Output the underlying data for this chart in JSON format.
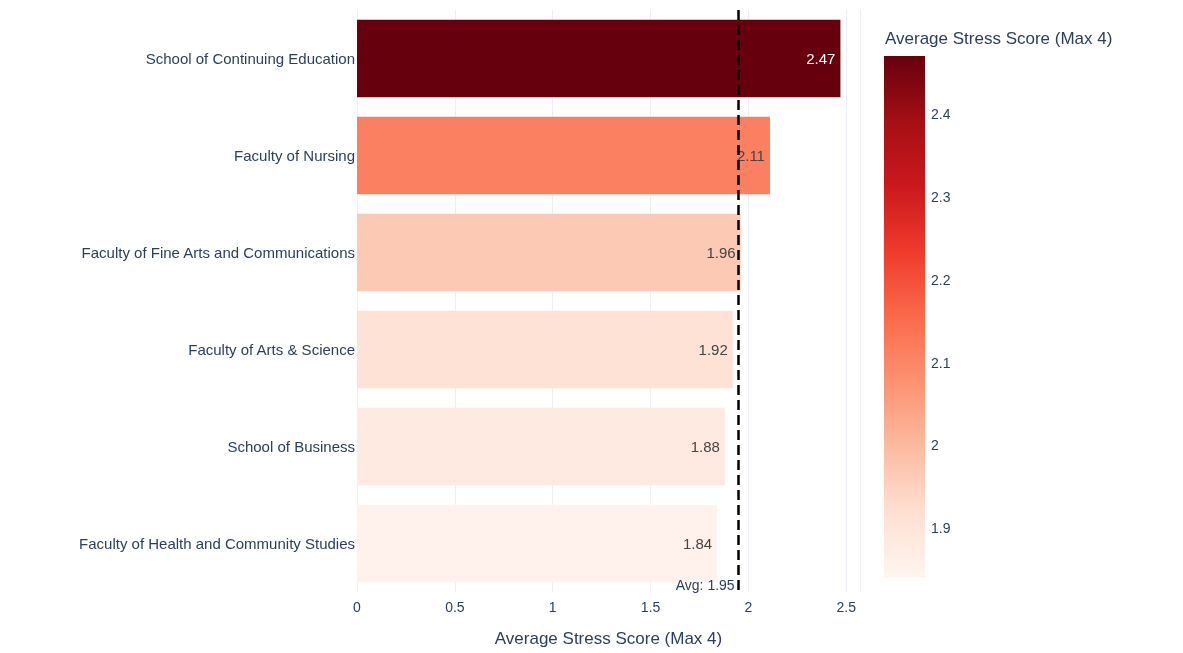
{
  "chart_data": {
    "type": "bar",
    "orientation": "horizontal",
    "xlabel": "Average Stress Score (Max 4)",
    "clabel": "Average Stress Score (Max 4)",
    "categories": [
      "School of Continuing Education",
      "Faculty of Nursing",
      "Faculty of Fine Arts and Communications",
      "Faculty of Arts & Science",
      "School of Business",
      "Faculty of Health and Community Studies"
    ],
    "values": [
      2.47,
      2.11,
      1.96,
      1.92,
      1.88,
      1.84
    ],
    "colors": [
      "#67000d",
      "#fb7f61",
      "#fcc9b4",
      "#fee2d6",
      "#feeae1",
      "#fff2ec"
    ],
    "clim": [
      1.84,
      2.47
    ],
    "cticks": [
      1.9,
      2,
      2.1,
      2.2,
      2.3,
      2.4
    ],
    "xlim": [
      0,
      2.57
    ],
    "xticks": [
      0,
      0.5,
      1,
      1.5,
      2,
      2.5
    ],
    "grid": "x",
    "data_labels": true,
    "ref_lines": [
      {
        "axis": "x",
        "value": 1.95,
        "label": "Avg: 1.95",
        "color": "#000000",
        "line_style": "dashed"
      }
    ]
  }
}
